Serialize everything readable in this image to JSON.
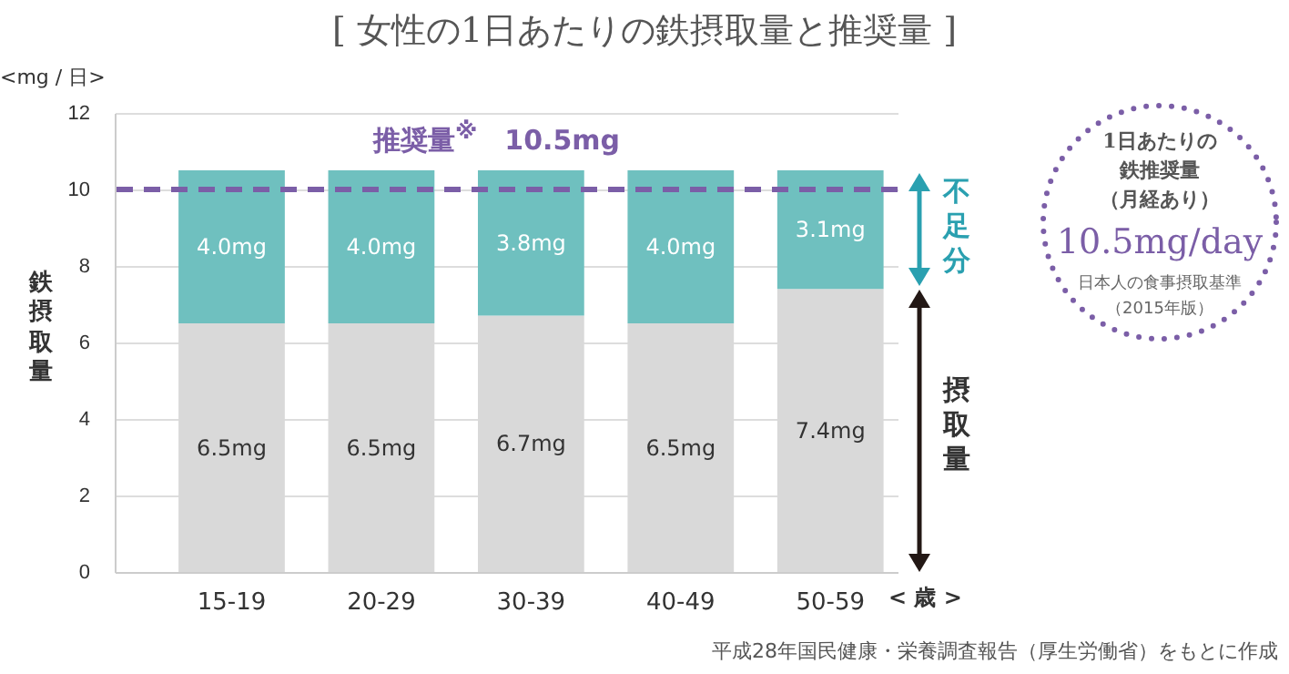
{
  "chart_data": {
    "type": "bar",
    "title": "[ 女性の1日あたりの鉄摂取量と推奨量 ]",
    "ylabel": "鉄摂取量",
    "xlabel": "< 歳 >",
    "categories": [
      "15-19",
      "20-29",
      "30-39",
      "40-49",
      "50-59"
    ],
    "stacked": true,
    "series": [
      {
        "name": "摂取量",
        "color": "#d9d9d9",
        "values": [
          6.5,
          6.5,
          6.7,
          6.5,
          7.4
        ],
        "value_labels": [
          "6.5mg",
          "6.5mg",
          "6.7mg",
          "6.5mg",
          "7.4mg"
        ]
      },
      {
        "name": "不足分",
        "color": "#6fc0bf",
        "values": [
          4.0,
          4.0,
          3.8,
          4.0,
          3.1
        ],
        "value_labels": [
          "4.0mg",
          "4.0mg",
          "3.8mg",
          "4.0mg",
          "3.1mg"
        ]
      }
    ],
    "ylim": [
      0,
      12
    ],
    "yticks": [
      0,
      2,
      4,
      6,
      8,
      10,
      12
    ],
    "grid": "y",
    "ref_lines": [
      {
        "axis": "y",
        "value": 10,
        "label": "推奨量$^{※}$　10.5mg",
        "color": "#7b5ea7",
        "line_style": "dashed"
      }
    ],
    "annotations": [
      "<mg / 日>",
      "1日あたりの",
      "鉄推奨量",
      "（月経あり）",
      "10.5mg/day",
      "日本人の食事摂取基準",
      "（2015年版）",
      "平成28年国民健康・栄養調査報告（厚生労働省）をもとに作成"
    ]
  }
}
